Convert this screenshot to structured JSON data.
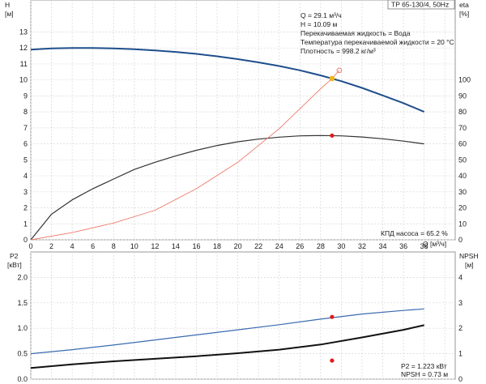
{
  "chart_data": [
    {
      "type": "line",
      "title": "TP 65-130/4, 50Hz",
      "xlabel": "Q [м³/ч]",
      "x_ticks": [
        0,
        2,
        4,
        6,
        8,
        10,
        12,
        14,
        16,
        18,
        20,
        22,
        24,
        26,
        28,
        30,
        32,
        34,
        36,
        38
      ],
      "xlim": [
        0,
        41
      ],
      "y_left": {
        "label": "H",
        "unit": "[м]",
        "lim": [
          0,
          15
        ],
        "ticks": [
          0,
          1,
          2,
          3,
          4,
          5,
          6,
          7,
          8,
          9,
          10,
          11,
          12,
          13
        ]
      },
      "y_right": {
        "label": "eta",
        "unit": "[%]",
        "lim": [
          0,
          150
        ],
        "ticks": [
          0,
          10,
          20,
          30,
          40,
          50,
          60,
          70,
          80,
          90,
          100
        ]
      },
      "grid": true,
      "info_lines": [
        "Q = 29.1 м³/ч",
        "H = 10.09 м",
        "Перекачиваемая жидкость = Вода",
        "Температура перекачиваемой жидкости = 20 °C",
        "Плотность = 998.2 кг/м³"
      ],
      "annotation": "КПД насоса = 65.2 %",
      "series": [
        {
          "color": "#1f4e8c",
          "axis": "left",
          "x": [
            0,
            2,
            4,
            6,
            8,
            10,
            12,
            14,
            16,
            18,
            20,
            22,
            24,
            26,
            28,
            30,
            32,
            34,
            36,
            38
          ],
          "y": [
            11.9,
            11.97,
            12.0,
            12.0,
            11.97,
            11.92,
            11.85,
            11.75,
            11.63,
            11.48,
            11.3,
            11.1,
            10.87,
            10.6,
            10.28,
            9.92,
            9.5,
            9.03,
            8.55,
            8.0
          ]
        },
        {
          "color": "#333333",
          "axis": "right",
          "x": [
            0,
            2,
            4,
            6,
            8,
            10,
            12,
            14,
            16,
            18,
            20,
            22,
            24,
            26,
            28,
            30,
            32,
            34,
            36,
            38
          ],
          "y": [
            0,
            16,
            25,
            32,
            38,
            44,
            48.5,
            52.5,
            56,
            59,
            61.3,
            63,
            64.2,
            65,
            65.2,
            65,
            64.3,
            63.2,
            61.7,
            60
          ]
        },
        {
          "color": "#ef7b6b",
          "axis": "left",
          "x": [
            0,
            4,
            8,
            12,
            16,
            20,
            24,
            28,
            29.1,
            29.8
          ],
          "y": [
            0,
            0.45,
            1.05,
            1.85,
            3.2,
            4.85,
            6.95,
            9.45,
            10.09,
            10.6
          ]
        }
      ],
      "operating_point": {
        "x": 29.1,
        "h": 10.09,
        "eta": 65.2
      },
      "marker_colors": {
        "h": "#f2b319",
        "eta": "#e01b1b",
        "open": "#ef7b6b"
      }
    },
    {
      "type": "line",
      "xlim": [
        0,
        41
      ],
      "y_left": {
        "label": "P2",
        "unit": "[кВт]",
        "lim": [
          0,
          2.5
        ],
        "ticks": [
          0.0,
          0.5,
          1.0,
          1.5,
          2.0
        ]
      },
      "y_right": {
        "label": "NPSH",
        "unit": "[м]",
        "lim": [
          0,
          5
        ],
        "ticks": [
          0,
          1,
          2,
          3,
          4
        ]
      },
      "grid": true,
      "info_lines": [
        "P2 = 1.223 кВт",
        "NPSH = 0.73 м"
      ],
      "series": [
        {
          "color": "#3a6bb0",
          "axis": "left",
          "x": [
            0,
            4,
            8,
            12,
            16,
            20,
            24,
            28,
            32,
            36,
            38
          ],
          "y": [
            0.5,
            0.58,
            0.67,
            0.77,
            0.87,
            0.97,
            1.07,
            1.18,
            1.28,
            1.35,
            1.38
          ]
        },
        {
          "color": "#111111",
          "axis": "left",
          "x": [
            0,
            4,
            8,
            12,
            16,
            20,
            24,
            28,
            32,
            36,
            38
          ],
          "y": [
            0.22,
            0.29,
            0.35,
            0.4,
            0.45,
            0.51,
            0.58,
            0.68,
            0.82,
            0.97,
            1.06
          ]
        }
      ],
      "operating_point": {
        "x": 29.1,
        "p2": 1.223,
        "npsh": 0.73
      },
      "marker_colors": {
        "p2": "#e01b1b",
        "npsh": "#e01b1b"
      }
    }
  ]
}
